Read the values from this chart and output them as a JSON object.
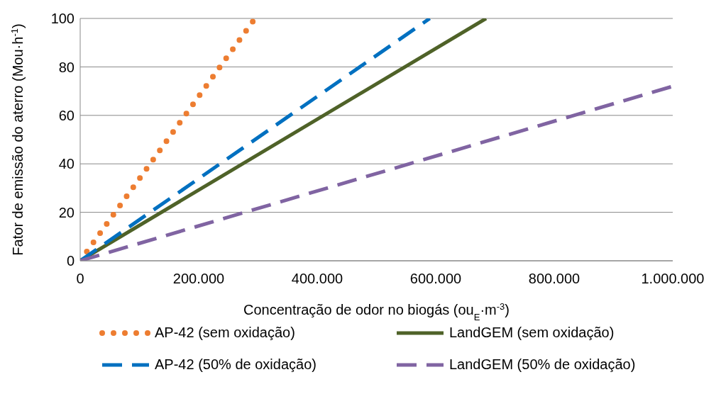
{
  "chart_data": {
    "type": "line",
    "xlabel": "Concentração de odor no biogás (ou$_{E}$·m$^{-3}$)",
    "ylabel": "Fator de emissão do aterro (Mou·h$^{-1}$)",
    "xlim": [
      0,
      1000000
    ],
    "xticks": [
      0,
      {
        "value": 200000,
        "label": "200.000"
      },
      {
        "value": 400000,
        "label": "400.000"
      },
      {
        "value": 600000,
        "label": "600.000"
      },
      {
        "value": 800000,
        "label": "800.000"
      },
      {
        "value": 1000000,
        "label": "1.000.000"
      }
    ],
    "ylim": [
      0,
      100
    ],
    "yticks": [
      0,
      20,
      40,
      60,
      80,
      100
    ],
    "grid": "y",
    "legend": "bottom",
    "marker": "none",
    "series": [
      {
        "name": "AP-42 (sem oxidação)",
        "color": "#ed7d31",
        "line_style": "dotted",
        "x": [
          0,
          295000
        ],
        "values": [
          0,
          100
        ]
      },
      {
        "name": "LandGEM (sem oxidação)",
        "color": "#4f6228",
        "line_style": "solid",
        "x": [
          0,
          685000
        ],
        "values": [
          0,
          100
        ]
      },
      {
        "name": "AP-42 (50% de oxidação)",
        "color": "#0070c0",
        "line_style": "dashed",
        "x": [
          0,
          590000
        ],
        "values": [
          0,
          100
        ]
      },
      {
        "name": "LandGEM (50% de oxidação)",
        "color": "#8064a2",
        "line_style": "dashed",
        "x": [
          0,
          1000000
        ],
        "values": [
          0,
          72
        ]
      }
    ]
  }
}
